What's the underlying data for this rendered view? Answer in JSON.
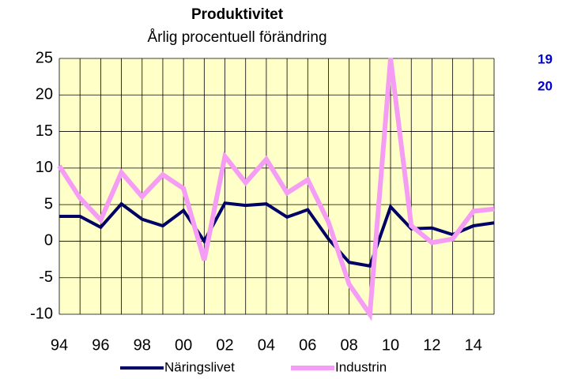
{
  "chart_data": {
    "type": "line",
    "title": "Produktivitet",
    "subtitle": "Årlig procentuell förändring",
    "categories": [
      "94",
      null,
      "96",
      null,
      "98",
      null,
      "00",
      null,
      "02",
      null,
      "04",
      null,
      "06",
      null,
      "08",
      null,
      "10",
      null,
      "12",
      null,
      "14",
      null
    ],
    "series": [
      {
        "name": "Näringslivet",
        "color": "#000066",
        "values": [
          3.4,
          3.4,
          1.9,
          5.1,
          3.0,
          2.1,
          4.2,
          0.0,
          5.2,
          4.9,
          5.1,
          3.3,
          4.3,
          0.3,
          -2.9,
          -3.4,
          4.7,
          1.7,
          1.8,
          0.9,
          2.1,
          2.5
        ]
      },
      {
        "name": "Industrin",
        "color": "#f59cf5",
        "values": [
          10.3,
          5.9,
          2.9,
          9.4,
          6.1,
          9.1,
          7.2,
          -2.6,
          11.6,
          8.0,
          11.2,
          6.6,
          8.4,
          2.6,
          -5.9,
          -10.0,
          25.0,
          2.1,
          -0.2,
          0.3,
          4.1,
          4.4
        ]
      }
    ],
    "ylim": [
      -10,
      25
    ],
    "yticks": [
      -10,
      -5,
      0,
      5,
      10,
      15,
      20,
      25
    ],
    "grid": true,
    "annotations": [
      "19",
      "20"
    ],
    "legend": "bottom"
  }
}
